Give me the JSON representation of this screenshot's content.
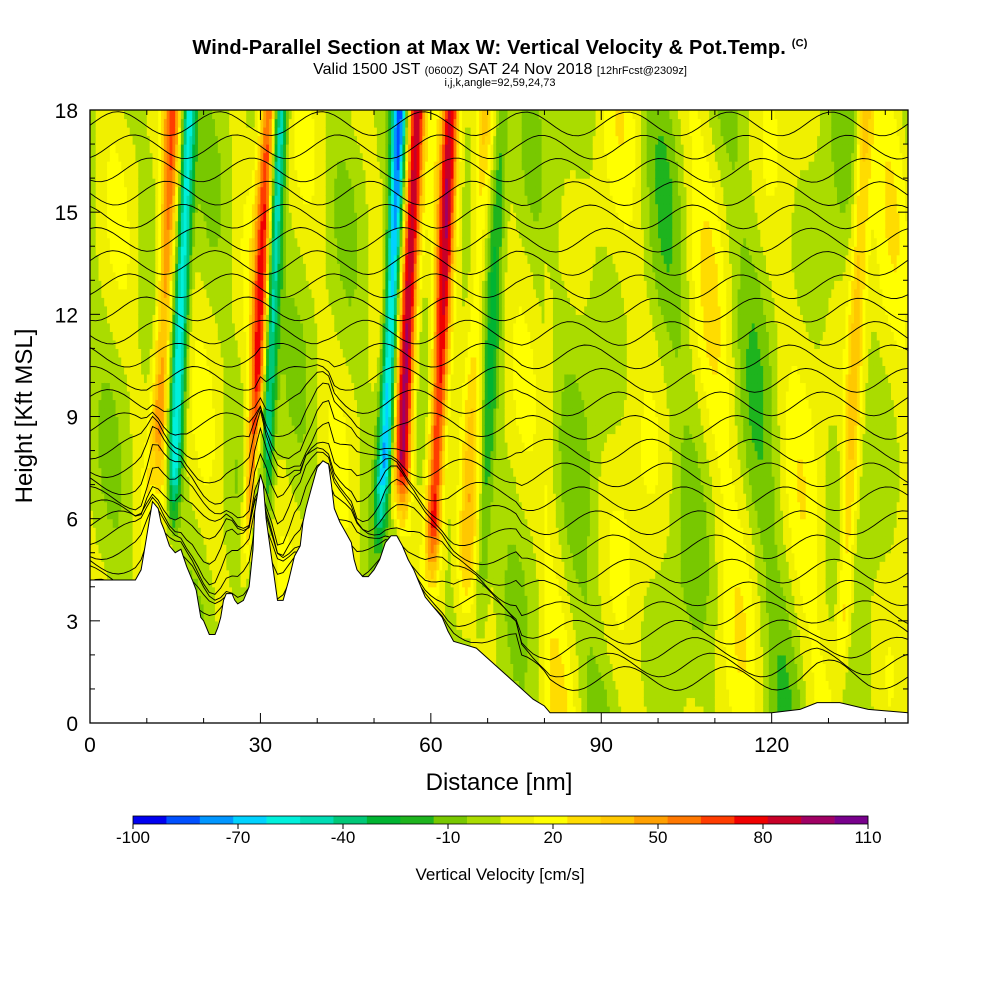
{
  "title": {
    "main": "Wind-Parallel Section at Max W: Vertical Velocity & Pot.Temp.",
    "copyright": "(C)",
    "valid_prefix": "Valid 1500 JST",
    "utc": "(0600Z)",
    "valid_date": "SAT 24 Nov 2018",
    "forecast": "[12hrFcst@2309z]",
    "indices": "i,j,k,angle=92,59,24,73"
  },
  "chart_data": {
    "type": "heatmap",
    "xlabel": "Distance [nm]",
    "ylabel": "Height [Kft MSL]",
    "xlim": [
      0,
      144
    ],
    "ylim": [
      0,
      18
    ],
    "x_ticks": [
      0,
      30,
      60,
      90,
      120
    ],
    "y_ticks": [
      0,
      3,
      6,
      9,
      12,
      15,
      18
    ],
    "colorbar": {
      "title": "Vertical Velocity [cm/s]",
      "range": [
        -100,
        110
      ],
      "labels": [
        -100,
        -70,
        -40,
        -10,
        20,
        50,
        80,
        110
      ],
      "colors": [
        "#0000f0",
        "#0050ff",
        "#0096ff",
        "#00d2ff",
        "#00f0dc",
        "#00dcb4",
        "#00c878",
        "#00b432",
        "#1eb41e",
        "#78c800",
        "#aadc00",
        "#f0f000",
        "#ffff00",
        "#ffdc00",
        "#ffc800",
        "#ffa000",
        "#ff7800",
        "#ff3c00",
        "#f00000",
        "#c80028",
        "#a00064",
        "#78008c"
      ]
    },
    "updrafts_cm_s": [
      {
        "x_nm": 12,
        "max": 60
      },
      {
        "x_nm": 29,
        "max": 80
      },
      {
        "x_nm": 55,
        "max": 100
      },
      {
        "x_nm": 61,
        "max": 90
      },
      {
        "x_nm": 67,
        "max": 30
      },
      {
        "x_nm": 134,
        "max": 40
      }
    ],
    "downdrafts_cm_s": [
      {
        "x_nm": 15,
        "min": -75
      },
      {
        "x_nm": 31,
        "min": -70
      },
      {
        "x_nm": 52,
        "min": -95
      },
      {
        "x_nm": 70,
        "min": -30
      }
    ],
    "terrain_kft": [
      [
        0,
        4.2
      ],
      [
        8,
        4.2
      ],
      [
        9,
        4.5
      ],
      [
        9.5,
        5.0
      ],
      [
        10,
        5.5
      ],
      [
        10.5,
        6.0
      ],
      [
        11,
        6.5
      ],
      [
        12,
        6.3
      ],
      [
        12.5,
        5.9
      ],
      [
        13,
        5.7
      ],
      [
        14,
        5.2
      ],
      [
        15,
        5.0
      ],
      [
        16,
        5.1
      ],
      [
        17,
        4.6
      ],
      [
        18,
        4.2
      ],
      [
        18.7,
        3.9
      ],
      [
        19,
        3.6
      ],
      [
        19.5,
        3.1
      ],
      [
        20,
        3.0
      ],
      [
        21,
        2.6
      ],
      [
        22,
        2.6
      ],
      [
        22.5,
        2.8
      ],
      [
        23,
        3.1
      ],
      [
        23.5,
        3.6
      ],
      [
        24,
        3.8
      ],
      [
        25,
        3.8
      ],
      [
        25.5,
        3.6
      ],
      [
        26,
        3.5
      ],
      [
        27,
        3.6
      ],
      [
        28,
        4.0
      ],
      [
        28.7,
        5.1
      ],
      [
        29,
        6.2
      ],
      [
        30,
        7.3
      ],
      [
        30.5,
        7.0
      ],
      [
        31,
        6.0
      ],
      [
        32,
        4.8
      ],
      [
        33,
        3.6
      ],
      [
        34,
        3.6
      ],
      [
        35,
        4.2
      ],
      [
        36,
        4.9
      ],
      [
        37,
        5.2
      ],
      [
        37.5,
        5.9
      ],
      [
        38,
        6.3
      ],
      [
        39,
        6.9
      ],
      [
        40,
        7.5
      ],
      [
        41,
        7.7
      ],
      [
        42,
        7.6
      ],
      [
        42.5,
        7.0
      ],
      [
        43,
        6.3
      ],
      [
        44,
        5.9
      ],
      [
        45,
        5.6
      ],
      [
        46,
        5.3
      ],
      [
        46.5,
        4.8
      ],
      [
        47,
        4.5
      ],
      [
        48,
        4.3
      ],
      [
        49,
        4.3
      ],
      [
        50,
        4.5
      ],
      [
        51,
        4.8
      ],
      [
        52,
        5.3
      ],
      [
        53,
        5.5
      ],
      [
        54,
        5.5
      ],
      [
        55,
        5.2
      ],
      [
        56,
        4.8
      ],
      [
        57,
        4.5
      ],
      [
        58,
        4.1
      ],
      [
        59,
        3.7
      ],
      [
        60,
        3.5
      ],
      [
        61,
        3.3
      ],
      [
        62,
        3.1
      ],
      [
        63,
        2.7
      ],
      [
        64,
        2.4
      ],
      [
        66,
        2.3
      ],
      [
        68,
        2.2
      ],
      [
        70,
        1.9
      ],
      [
        72,
        1.6
      ],
      [
        74,
        1.3
      ],
      [
        76,
        1.0
      ],
      [
        78,
        0.7
      ],
      [
        80,
        0.5
      ],
      [
        81,
        0.3
      ],
      [
        85,
        0.3
      ],
      [
        95,
        0.3
      ],
      [
        105,
        0.3
      ],
      [
        115,
        0.3
      ],
      [
        120,
        0.3
      ],
      [
        125,
        0.4
      ],
      [
        128,
        0.6
      ],
      [
        132,
        0.6
      ],
      [
        137,
        0.4
      ],
      [
        144,
        0.3
      ]
    ]
  }
}
